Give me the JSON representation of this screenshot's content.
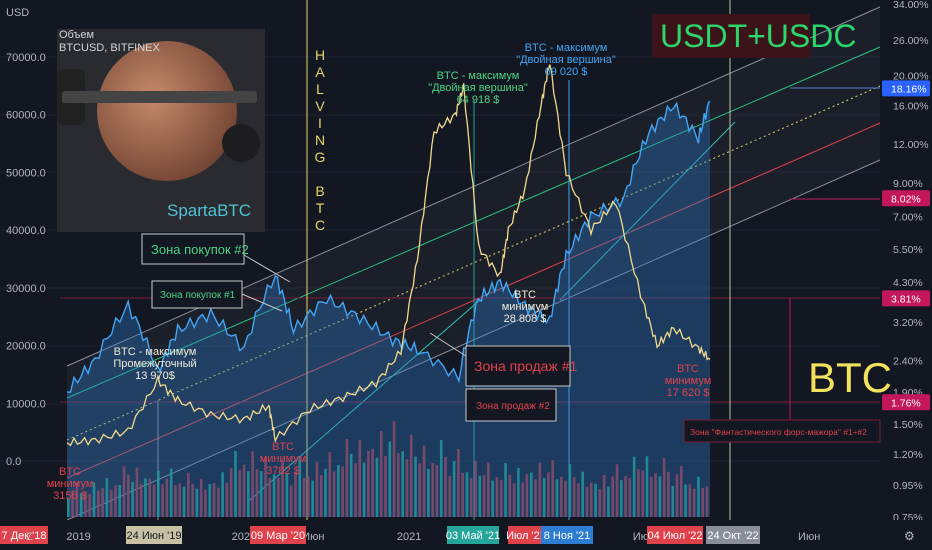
{
  "colors": {
    "background": "#131722",
    "price_line": "#f3d98b",
    "usdt_area": "#2d7dd2",
    "usdt_line": "#42a5f5",
    "channel_green": "#26c281",
    "channel_red": "#e0424b",
    "channel_grey": "#8a8e99",
    "dotted_mid": "#e8d46c",
    "halving": "#e8d46c",
    "vol_up": "#1fa383",
    "vol_down": "#b73138"
  },
  "header": {
    "left_axis_unit": "USD"
  },
  "inset": {
    "line1": "Объем",
    "line2": "BTCUSD, BITFINEX",
    "brand": "SpartaBTC",
    "brain_icon": "brain-with-dumbbell-icon"
  },
  "labels": {
    "usdt_title": "USDT+USDC",
    "btc_title": "BTC",
    "halving_letters": [
      "H",
      "A",
      "L",
      "V",
      "I",
      "N",
      "G",
      "",
      "B",
      "T",
      "C"
    ],
    "zone_buy1": "Зона покупок #1",
    "zone_buy2": "Зона покупок #2",
    "zone_sell1": "Зона продаж #1",
    "zone_sell2": "Зона продаж #2",
    "zone_force_majeure": "Зона \"Фантастического форс-мажора\" #1÷#2",
    "max_intermediate": [
      "BTC - максимум",
      "Промежуточный",
      "13 970$"
    ],
    "max_double1": [
      "BTC - максимум",
      "\"Двойная вершина\"",
      "64 918 $"
    ],
    "max_double2": [
      "BTC - максимум",
      "\"Двойная вершина\"",
      "69 020 $"
    ],
    "min_3156": [
      "BTC",
      "минимум",
      "3156 $"
    ],
    "min_3782": [
      "BTC",
      "минимум",
      "3782 $"
    ],
    "min_28808": [
      "BTC",
      "минимум",
      "28 808 $"
    ],
    "min_17620": [
      "BTC",
      "минимум",
      "17 620 $"
    ]
  },
  "right_axis_badges": [
    {
      "label": "18.16%",
      "color": "#2962ff"
    },
    {
      "label": "8.02%",
      "color": "#c2185b"
    },
    {
      "label": "3.81%",
      "color": "#c2185b"
    },
    {
      "label": "1.76%",
      "color": "#c2185b"
    }
  ],
  "chart_data": {
    "type": "line",
    "title": "BTC vs USDT+USDC dominance",
    "left_axis": {
      "label": "USD",
      "ticks": [
        "70000.0",
        "60000.0",
        "50000.0",
        "40000.0",
        "30000.0",
        "20000.0",
        "10000.0",
        "0.0"
      ],
      "ylim": [
        -2000,
        80000
      ]
    },
    "right_axis": {
      "label": "%",
      "scale": "log",
      "ticks": [
        "34.00%",
        "26.00%",
        "20.00%",
        "16.00%",
        "12.00%",
        "9.00%",
        "7.00%",
        "5.50%",
        "4.30%",
        "3.20%",
        "2.40%",
        "1.90%",
        "1.50%",
        "1.20%",
        "0.95%",
        "0.75%"
      ],
      "ylim": [
        0.7,
        34
      ]
    },
    "x_axis": {
      "ticks": [
        "2019",
        "2020",
        "Июн",
        "2021",
        "Июн",
        "2022",
        "Июн",
        "2023",
        "Июн"
      ],
      "date_badges": [
        {
          "label": "7 Дек '18",
          "color": "#e0424b"
        },
        {
          "label": "24 Июн '19",
          "color": "#c8c1a4"
        },
        {
          "label": "09 Мар '20",
          "color": "#e0424b"
        },
        {
          "label": "03 Май '21",
          "color": "#26a69a"
        },
        {
          "label": "Июл '21",
          "color": "#e0424b"
        },
        {
          "label": "8 Ноя '21",
          "color": "#2d7dd2"
        },
        {
          "label": "04 Июл '22",
          "color": "#e0424b"
        },
        {
          "label": "24 Окт '22",
          "color": "#8a8e99"
        }
      ]
    },
    "series": [
      {
        "name": "BTC price (USD)",
        "axis": "left",
        "t": [
          2018.93,
          2019.1,
          2019.3,
          2019.48,
          2019.6,
          2019.8,
          2020.0,
          2020.15,
          2020.19,
          2020.4,
          2020.6,
          2020.8,
          2020.95,
          2021.05,
          2021.15,
          2021.28,
          2021.33,
          2021.42,
          2021.55,
          2021.6,
          2021.7,
          2021.8,
          2021.85,
          2021.95,
          2022.1,
          2022.25,
          2022.4,
          2022.5,
          2022.6,
          2022.75,
          2022.82
        ],
        "values": [
          3156,
          3600,
          5200,
          13970,
          10500,
          8000,
          7200,
          9600,
          3782,
          9000,
          11000,
          13500,
          19000,
          35000,
          57000,
          60000,
          64918,
          37000,
          32000,
          40000,
          47000,
          62000,
          69020,
          50000,
          40000,
          45000,
          28808,
          20000,
          23000,
          19500,
          17620
        ]
      },
      {
        "name": "USDT+USDC dominance (%)",
        "axis": "right",
        "t": [
          2018.93,
          2019.1,
          2019.3,
          2019.48,
          2019.6,
          2019.8,
          2020.0,
          2020.19,
          2020.3,
          2020.5,
          2020.7,
          2020.9,
          2021.05,
          2021.3,
          2021.42,
          2021.55,
          2021.7,
          2021.85,
          2021.95,
          2022.1,
          2022.3,
          2022.45,
          2022.6,
          2022.75,
          2022.82
        ],
        "values": [
          1.9,
          2.4,
          3.6,
          2.2,
          3.0,
          3.4,
          2.6,
          4.5,
          3.0,
          3.8,
          3.3,
          2.8,
          2.6,
          2.1,
          3.8,
          4.3,
          3.6,
          3.2,
          5.2,
          7.0,
          8.0,
          13.0,
          16.0,
          12.5,
          16.5
        ]
      },
      {
        "name": "Volume (relative)",
        "axis": "volume",
        "values": [
          0.3,
          0.35,
          0.4,
          0.55,
          0.5,
          0.45,
          0.4,
          0.5,
          0.7,
          0.6,
          0.5,
          0.55,
          0.65,
          0.8,
          0.95,
          0.9,
          0.75,
          0.7,
          0.6,
          0.55,
          0.5,
          0.6,
          0.55,
          0.5,
          0.45,
          0.5,
          0.65,
          0.55,
          0.45,
          0.4
        ]
      }
    ]
  }
}
